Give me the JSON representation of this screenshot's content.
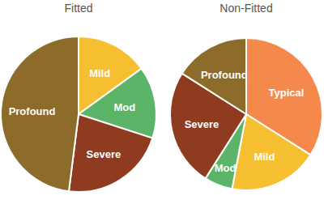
{
  "chart_data": [
    {
      "type": "pie",
      "title": "Fitted",
      "categories": [
        "Mild",
        "Mod",
        "Severe",
        "Profound"
      ],
      "values": [
        15,
        15,
        22,
        48
      ],
      "colors": [
        "#f6bf31",
        "#5cb469",
        "#8e3b1f",
        "#8c6b2b"
      ]
    },
    {
      "type": "pie",
      "title": "Non-Fitted",
      "categories": [
        "Typical",
        "Mild",
        "Mod",
        "Severe",
        "Profound"
      ],
      "values": [
        34,
        19,
        6,
        25,
        16
      ],
      "colors": [
        "#f5894b",
        "#f6bf31",
        "#5cb469",
        "#8e3b1f",
        "#8c6b2b"
      ]
    }
  ]
}
